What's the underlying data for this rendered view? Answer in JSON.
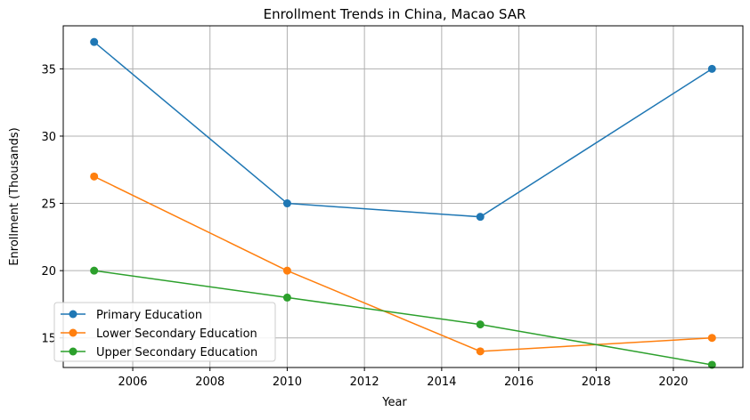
{
  "chart_data": {
    "type": "line",
    "title": "Enrollment Trends in China, Macao SAR",
    "xlabel": "Year",
    "ylabel": "Enrollment (Thousands)",
    "x": [
      2005,
      2010,
      2015,
      2021
    ],
    "xlim": [
      2004.2,
      2021.8
    ],
    "ylim": [
      12.8,
      38.2
    ],
    "xticks": [
      "2006",
      "2008",
      "2010",
      "2012",
      "2014",
      "2016",
      "2018",
      "2020"
    ],
    "yticks": [
      "15",
      "20",
      "25",
      "30",
      "35"
    ],
    "grid": true,
    "legend_position": "lower-left",
    "series": [
      {
        "name": "Primary Education",
        "values": [
          37,
          25,
          24,
          35
        ],
        "color": "#1f77b4"
      },
      {
        "name": "Lower Secondary Education",
        "values": [
          27,
          20,
          14,
          15
        ],
        "color": "#ff7f0e"
      },
      {
        "name": "Upper Secondary Education",
        "values": [
          20,
          18,
          16,
          13
        ],
        "color": "#2ca02c"
      }
    ]
  }
}
